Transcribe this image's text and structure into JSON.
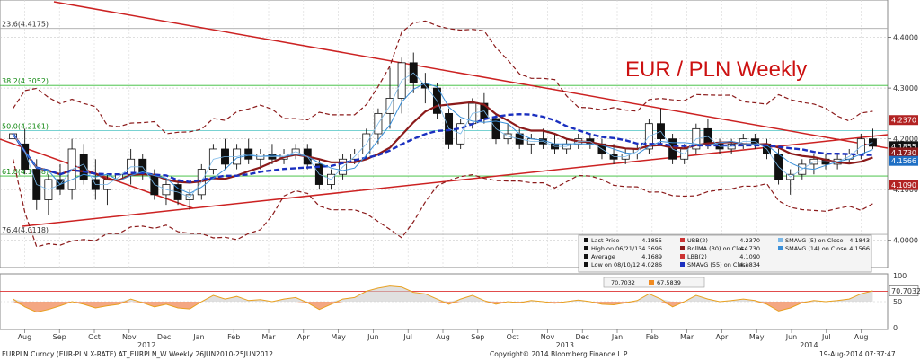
{
  "chart_data": {
    "type": "candlestick",
    "title": "EUR / PLN Weekly",
    "y_range": [
      3.95,
      4.47
    ],
    "y_ticks": [
      "4.4000",
      "4.3000",
      "4.2000",
      "4.1000",
      "4.0000"
    ],
    "y_tick_values": [
      4.4,
      4.3,
      4.2,
      4.1,
      4.0
    ],
    "x_months": [
      "Aug",
      "Sep",
      "Oct",
      "Nov",
      "Dec",
      "Jan",
      "Feb",
      "Mar",
      "Apr",
      "May",
      "Jun",
      "Jul",
      "Aug",
      "Sep",
      "Oct",
      "Nov",
      "Dec",
      "Jan",
      "Feb",
      "Mar",
      "Apr",
      "May",
      "Jun",
      "Jul",
      "Aug"
    ],
    "x_years": [
      "2012",
      "2013",
      "2014"
    ],
    "candles": [
      {
        "o": 4.2,
        "h": 4.24,
        "l": 4.17,
        "c": 4.21
      },
      {
        "o": 4.19,
        "h": 4.22,
        "l": 4.13,
        "c": 4.14
      },
      {
        "o": 4.14,
        "h": 4.16,
        "l": 4.06,
        "c": 4.08
      },
      {
        "o": 4.08,
        "h": 4.13,
        "l": 4.05,
        "c": 4.12
      },
      {
        "o": 4.12,
        "h": 4.15,
        "l": 4.09,
        "c": 4.1
      },
      {
        "o": 4.1,
        "h": 4.2,
        "l": 4.08,
        "c": 4.18
      },
      {
        "o": 4.17,
        "h": 4.19,
        "l": 4.11,
        "c": 4.12
      },
      {
        "o": 4.12,
        "h": 4.16,
        "l": 4.08,
        "c": 4.1
      },
      {
        "o": 4.1,
        "h": 4.13,
        "l": 4.07,
        "c": 4.12
      },
      {
        "o": 4.12,
        "h": 4.14,
        "l": 4.1,
        "c": 4.13
      },
      {
        "o": 4.13,
        "h": 4.18,
        "l": 4.11,
        "c": 4.16
      },
      {
        "o": 4.16,
        "h": 4.17,
        "l": 4.12,
        "c": 4.13
      },
      {
        "o": 4.13,
        "h": 4.14,
        "l": 4.08,
        "c": 4.09
      },
      {
        "o": 4.09,
        "h": 4.12,
        "l": 4.07,
        "c": 4.11
      },
      {
        "o": 4.11,
        "h": 4.12,
        "l": 4.07,
        "c": 4.08
      },
      {
        "o": 4.08,
        "h": 4.1,
        "l": 4.06,
        "c": 4.09
      },
      {
        "o": 4.09,
        "h": 4.15,
        "l": 4.08,
        "c": 4.14
      },
      {
        "o": 4.14,
        "h": 4.19,
        "l": 4.13,
        "c": 4.18
      },
      {
        "o": 4.18,
        "h": 4.2,
        "l": 4.14,
        "c": 4.15
      },
      {
        "o": 4.15,
        "h": 4.19,
        "l": 4.14,
        "c": 4.18
      },
      {
        "o": 4.18,
        "h": 4.2,
        "l": 4.15,
        "c": 4.16
      },
      {
        "o": 4.16,
        "h": 4.18,
        "l": 4.14,
        "c": 4.17
      },
      {
        "o": 4.17,
        "h": 4.19,
        "l": 4.15,
        "c": 4.16
      },
      {
        "o": 4.16,
        "h": 4.18,
        "l": 4.15,
        "c": 4.17
      },
      {
        "o": 4.17,
        "h": 4.19,
        "l": 4.16,
        "c": 4.18
      },
      {
        "o": 4.18,
        "h": 4.19,
        "l": 4.14,
        "c": 4.15
      },
      {
        "o": 4.15,
        "h": 4.16,
        "l": 4.1,
        "c": 4.11
      },
      {
        "o": 4.11,
        "h": 4.14,
        "l": 4.1,
        "c": 4.13
      },
      {
        "o": 4.13,
        "h": 4.17,
        "l": 4.12,
        "c": 4.16
      },
      {
        "o": 4.16,
        "h": 4.18,
        "l": 4.15,
        "c": 4.17
      },
      {
        "o": 4.17,
        "h": 4.22,
        "l": 4.16,
        "c": 4.21
      },
      {
        "o": 4.21,
        "h": 4.26,
        "l": 4.19,
        "c": 4.25
      },
      {
        "o": 4.25,
        "h": 4.34,
        "l": 4.22,
        "c": 4.28
      },
      {
        "o": 4.28,
        "h": 4.36,
        "l": 4.25,
        "c": 4.35
      },
      {
        "o": 4.35,
        "h": 4.37,
        "l": 4.29,
        "c": 4.31
      },
      {
        "o": 4.31,
        "h": 4.33,
        "l": 4.27,
        "c": 4.3
      },
      {
        "o": 4.3,
        "h": 4.31,
        "l": 4.24,
        "c": 4.25
      },
      {
        "o": 4.25,
        "h": 4.26,
        "l": 4.18,
        "c": 4.19
      },
      {
        "o": 4.19,
        "h": 4.24,
        "l": 4.18,
        "c": 4.23
      },
      {
        "o": 4.23,
        "h": 4.28,
        "l": 4.22,
        "c": 4.27
      },
      {
        "o": 4.27,
        "h": 4.29,
        "l": 4.23,
        "c": 4.24
      },
      {
        "o": 4.24,
        "h": 4.25,
        "l": 4.19,
        "c": 4.2
      },
      {
        "o": 4.2,
        "h": 4.23,
        "l": 4.19,
        "c": 4.21
      },
      {
        "o": 4.21,
        "h": 4.22,
        "l": 4.18,
        "c": 4.19
      },
      {
        "o": 4.19,
        "h": 4.21,
        "l": 4.17,
        "c": 4.2
      },
      {
        "o": 4.2,
        "h": 4.22,
        "l": 4.18,
        "c": 4.19
      },
      {
        "o": 4.19,
        "h": 4.21,
        "l": 4.17,
        "c": 4.18
      },
      {
        "o": 4.18,
        "h": 4.2,
        "l": 4.17,
        "c": 4.19
      },
      {
        "o": 4.19,
        "h": 4.21,
        "l": 4.18,
        "c": 4.2
      },
      {
        "o": 4.2,
        "h": 4.21,
        "l": 4.18,
        "c": 4.19
      },
      {
        "o": 4.19,
        "h": 4.2,
        "l": 4.16,
        "c": 4.17
      },
      {
        "o": 4.17,
        "h": 4.19,
        "l": 4.15,
        "c": 4.16
      },
      {
        "o": 4.16,
        "h": 4.18,
        "l": 4.15,
        "c": 4.17
      },
      {
        "o": 4.17,
        "h": 4.19,
        "l": 4.16,
        "c": 4.18
      },
      {
        "o": 4.18,
        "h": 4.24,
        "l": 4.17,
        "c": 4.23
      },
      {
        "o": 4.23,
        "h": 4.26,
        "l": 4.19,
        "c": 4.2
      },
      {
        "o": 4.2,
        "h": 4.21,
        "l": 4.15,
        "c": 4.16
      },
      {
        "o": 4.16,
        "h": 4.19,
        "l": 4.15,
        "c": 4.18
      },
      {
        "o": 4.18,
        "h": 4.23,
        "l": 4.17,
        "c": 4.22
      },
      {
        "o": 4.22,
        "h": 4.24,
        "l": 4.18,
        "c": 4.19
      },
      {
        "o": 4.19,
        "h": 4.2,
        "l": 4.17,
        "c": 4.18
      },
      {
        "o": 4.18,
        "h": 4.2,
        "l": 4.17,
        "c": 4.19
      },
      {
        "o": 4.19,
        "h": 4.21,
        "l": 4.18,
        "c": 4.2
      },
      {
        "o": 4.2,
        "h": 4.21,
        "l": 4.18,
        "c": 4.19
      },
      {
        "o": 4.19,
        "h": 4.2,
        "l": 4.16,
        "c": 4.17
      },
      {
        "o": 4.17,
        "h": 4.18,
        "l": 4.11,
        "c": 4.12
      },
      {
        "o": 4.12,
        "h": 4.14,
        "l": 4.09,
        "c": 4.13
      },
      {
        "o": 4.13,
        "h": 4.16,
        "l": 4.12,
        "c": 4.15
      },
      {
        "o": 4.15,
        "h": 4.17,
        "l": 4.13,
        "c": 4.16
      },
      {
        "o": 4.16,
        "h": 4.17,
        "l": 4.14,
        "c": 4.15
      },
      {
        "o": 4.15,
        "h": 4.17,
        "l": 4.14,
        "c": 4.16
      },
      {
        "o": 4.16,
        "h": 4.18,
        "l": 4.15,
        "c": 4.17
      },
      {
        "o": 4.17,
        "h": 4.21,
        "l": 4.16,
        "c": 4.2
      },
      {
        "o": 4.2,
        "h": 4.22,
        "l": 4.18,
        "c": 4.1855
      }
    ],
    "fib_labels": [
      {
        "text": "23.6(4.4175)",
        "value": 4.4175,
        "color": "#333333"
      },
      {
        "text": "38.2(4.3052)",
        "value": 4.3052,
        "color": "#118811"
      },
      {
        "text": "50.0(4.2161)",
        "value": 4.2161,
        "color": "#118811"
      },
      {
        "text": "61.8(4.1268)",
        "value": 4.1268,
        "color": "#118811"
      },
      {
        "text": "76.4(4.0118)",
        "value": 4.0118,
        "color": "#333333"
      }
    ],
    "price_tags": [
      {
        "text": "4.2370",
        "value": 4.237,
        "bg": "#b22222",
        "fg": "#ffffff"
      },
      {
        "text": "4.1855",
        "value": 4.1855,
        "bg": "#111111",
        "fg": "#ffffff"
      },
      {
        "text": "4.1730",
        "value": 4.173,
        "bg": "#8b1a1a",
        "fg": "#ffffff"
      },
      {
        "text": "4.1566",
        "value": 4.1566,
        "bg": "#1f6fc4",
        "fg": "#ffffff"
      },
      {
        "text": "4.1090",
        "value": 4.109,
        "bg": "#b22222",
        "fg": "#ffffff"
      }
    ],
    "legend": {
      "col1": [
        {
          "label": "Last Price",
          "value": "4.1855"
        },
        {
          "label": "High on 06/21/13",
          "value": "4.3696"
        },
        {
          "label": "Average",
          "value": "4.1689"
        },
        {
          "label": "Low on 08/10/12",
          "value": "4.0286"
        }
      ],
      "col2": [
        {
          "label": "UBB(2)",
          "value": "4.2370"
        },
        {
          "label": "BollMA (30) on Close",
          "value": "4.1730"
        },
        {
          "label": "LBB(2)",
          "value": "4.1090"
        },
        {
          "label": "SMAVG (55) on Close",
          "value": "4.1834"
        }
      ],
      "col3": [
        {
          "label": "SMAVG (5) on Close",
          "value": "4.1843"
        },
        {
          "label": "SMAVG (14) on Close",
          "value": "4.1566"
        }
      ]
    },
    "rsi": {
      "y_ticks": [
        "100",
        "50",
        "0"
      ],
      "levels": [
        70,
        30
      ],
      "values": [
        55,
        40,
        30,
        35,
        42,
        50,
        45,
        38,
        42,
        45,
        55,
        48,
        40,
        45,
        38,
        36,
        50,
        62,
        55,
        60,
        52,
        54,
        50,
        55,
        58,
        48,
        35,
        45,
        55,
        58,
        70,
        76,
        80,
        78,
        68,
        65,
        55,
        45,
        55,
        62,
        52,
        45,
        50,
        48,
        52,
        50,
        47,
        50,
        53,
        50,
        45,
        44,
        48,
        52,
        65,
        55,
        40,
        50,
        62,
        55,
        50,
        52,
        55,
        52,
        45,
        32,
        38,
        48,
        52,
        50,
        52,
        55,
        65,
        70.7
      ],
      "legend_values": [
        "70.7032",
        "67.5839"
      ],
      "tag": "70.7032"
    },
    "footer": {
      "left": "EURPLN Curncy (EUR-PLN X-RATE) AT_EURPLN_W  Weekly 26JUN2010-25JUN2012",
      "center": "Copyright© 2014 Bloomberg Finance L.P.",
      "right": "19-Aug-2014 07:37:47"
    }
  }
}
